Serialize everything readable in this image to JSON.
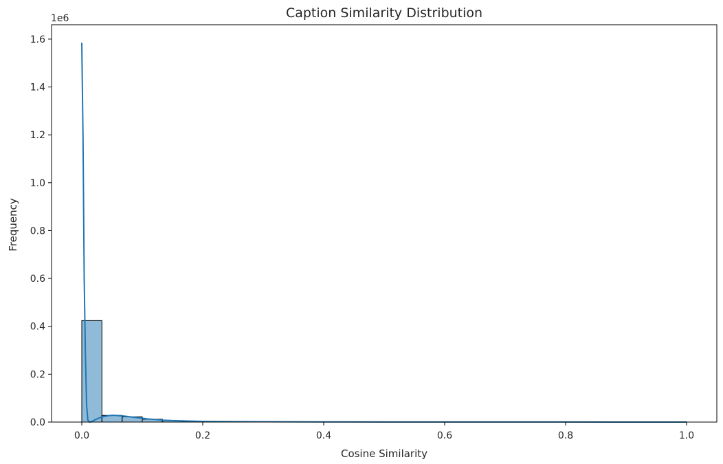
{
  "chart_data": {
    "type": "bar",
    "title": "Caption Similarity Distribution",
    "xlabel": "Cosine Similarity",
    "ylabel": "Frequency",
    "y_offset_label": "1e6",
    "xlim": [
      -0.05,
      1.05
    ],
    "ylim": [
      0,
      1.66
    ],
    "x_ticks": [
      0.0,
      0.2,
      0.4,
      0.6,
      0.8,
      1.0
    ],
    "x_tick_labels": [
      "0.0",
      "0.2",
      "0.4",
      "0.6",
      "0.8",
      "1.0"
    ],
    "y_ticks": [
      0.0,
      0.2,
      0.4,
      0.6,
      0.8,
      1.0,
      1.2,
      1.4,
      1.6
    ],
    "y_tick_labels": [
      "0.0",
      "0.2",
      "0.4",
      "0.6",
      "0.8",
      "1.0",
      "1.2",
      "1.4",
      "1.6"
    ],
    "grid": false,
    "bar_color": "#1f77b4",
    "bar_opacity": 0.5,
    "bar_edge_color": "#000000",
    "kde_color": "#1f77b4",
    "bins": {
      "edges": [
        0.0,
        0.0333,
        0.0667,
        0.1,
        0.1333,
        0.1667,
        0.2,
        0.2333,
        0.2667,
        0.3,
        0.3333,
        0.3667,
        0.4,
        0.4333,
        0.4667,
        0.5,
        0.5333,
        0.5667,
        0.6,
        0.6333,
        0.6667,
        0.7,
        0.7333,
        0.7667,
        0.8,
        0.8333,
        0.8667,
        0.9,
        0.9333,
        0.9667,
        1.0
      ],
      "values": [
        0.424,
        0.028,
        0.022,
        0.012,
        0.006,
        0.0035,
        0.002,
        0.0013,
        0.0009,
        0.0006,
        0.0004,
        0.0003,
        0.0002,
        0.00015,
        0.0001,
        0.0001,
        8e-05,
        6e-05,
        5e-05,
        4e-05,
        3e-05,
        3e-05,
        2e-05,
        2e-05,
        2e-05,
        1e-05,
        1e-05,
        1e-05,
        1e-05,
        2e-05
      ]
    },
    "kde": {
      "x": [
        0.0,
        0.002,
        0.004,
        0.006,
        0.008,
        0.01,
        0.013,
        0.016,
        0.02,
        0.025,
        0.03,
        0.035,
        0.04,
        0.045,
        0.05,
        0.055,
        0.06,
        0.07,
        0.08,
        0.09,
        0.1,
        0.11,
        0.12,
        0.135,
        0.15,
        0.17,
        0.2,
        0.25,
        0.3,
        0.35,
        0.4,
        0.5,
        0.6,
        0.7,
        0.8,
        0.9,
        1.0
      ],
      "y": [
        1.585,
        1.2,
        0.6,
        0.28,
        0.07,
        0.008,
        0.0,
        0.001,
        0.007,
        0.013,
        0.018,
        0.022,
        0.025,
        0.027,
        0.028,
        0.028,
        0.027,
        0.025,
        0.022,
        0.019,
        0.016,
        0.013,
        0.011,
        0.008,
        0.006,
        0.0045,
        0.003,
        0.002,
        0.0015,
        0.001,
        0.0008,
        0.0005,
        0.0003,
        0.0002,
        0.0002,
        0.0001,
        0.0001
      ]
    }
  }
}
